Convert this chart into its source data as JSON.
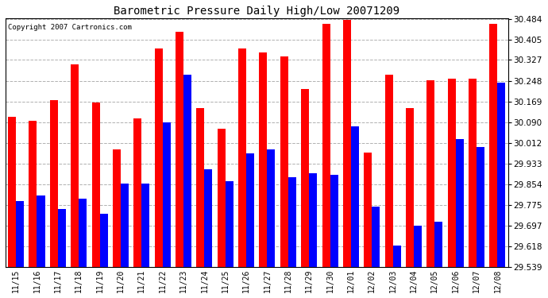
{
  "title": "Barometric Pressure Daily High/Low 20071209",
  "copyright": "Copyright 2007 Cartronics.com",
  "dates": [
    "11/15",
    "11/16",
    "11/17",
    "11/18",
    "11/19",
    "11/20",
    "11/21",
    "11/22",
    "11/23",
    "11/24",
    "11/25",
    "11/26",
    "11/27",
    "11/28",
    "11/29",
    "11/30",
    "12/01",
    "12/02",
    "12/03",
    "12/04",
    "12/05",
    "12/06",
    "12/07",
    "12/08"
  ],
  "highs": [
    30.11,
    30.095,
    30.175,
    30.31,
    30.165,
    29.985,
    30.105,
    30.37,
    30.435,
    30.145,
    30.065,
    30.37,
    30.355,
    30.34,
    30.215,
    30.465,
    30.48,
    29.975,
    30.27,
    30.145,
    30.25,
    30.255,
    30.255,
    30.465
  ],
  "lows": [
    29.79,
    29.81,
    29.76,
    29.8,
    29.74,
    29.855,
    29.855,
    30.09,
    30.27,
    29.91,
    29.865,
    29.97,
    29.985,
    29.88,
    29.895,
    29.89,
    30.075,
    29.77,
    29.62,
    29.695,
    29.71,
    30.025,
    29.995,
    30.24
  ],
  "high_color": "#ff0000",
  "low_color": "#0000ff",
  "bg_color": "#ffffff",
  "plot_bg_color": "#ffffff",
  "grid_color": "#b0b0b0",
  "ymin": 29.539,
  "ymax": 30.484,
  "yticks": [
    29.539,
    29.618,
    29.697,
    29.775,
    29.854,
    29.933,
    30.012,
    30.09,
    30.169,
    30.248,
    30.327,
    30.405,
    30.484
  ]
}
